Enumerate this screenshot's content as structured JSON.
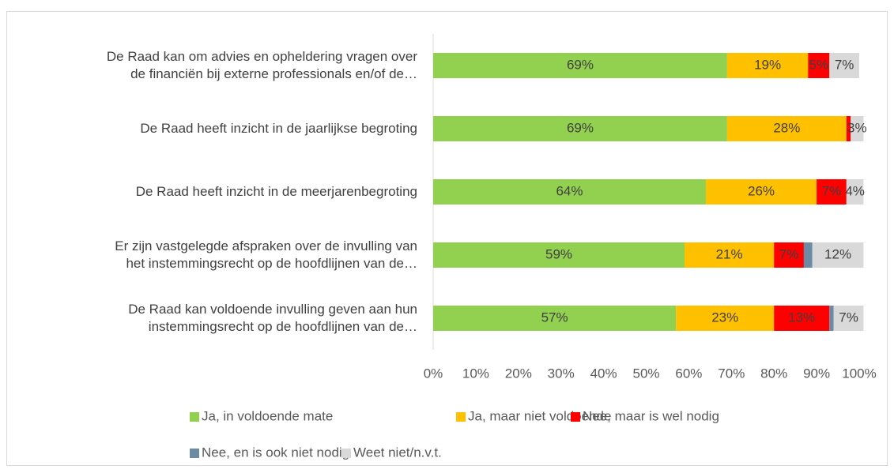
{
  "chart_data": {
    "type": "stacked-barh",
    "categories": [
      "De Raad kan om advies en opheldering vragen over\nde financiën bij externe professionals en/of de…",
      "De Raad heeft inzicht in de jaarlijkse begroting",
      "De Raad heeft inzicht in de meerjarenbegroting",
      "Er zijn vastgelegde afspraken over de invulling van\nhet instemmingsrecht op de hoofdlijnen van de…",
      "De Raad kan voldoende invulling geven aan hun\ninstemmingsrecht op de hoofdlijnen van de…"
    ],
    "series": [
      {
        "name": "Ja, in voldoende mate",
        "color": "#92d050",
        "values": [
          69,
          69,
          64,
          59,
          57
        ],
        "value_labels": [
          "69%",
          "69%",
          "64%",
          "59%",
          "57%"
        ]
      },
      {
        "name": "Ja, maar niet voldoende",
        "color": "#ffc000",
        "values": [
          19,
          28,
          26,
          21,
          23
        ],
        "value_labels": [
          "19%",
          "28%",
          "26%",
          "21%",
          "23%"
        ]
      },
      {
        "name": "Nee, maar is wel nodig",
        "color": "#ff0000",
        "values": [
          5,
          1,
          7,
          7,
          13
        ],
        "value_labels": [
          "5%",
          null,
          "7%",
          "7%",
          "13%"
        ]
      },
      {
        "name": "Nee, en is ook niet nodig",
        "color": "#6b8aa3",
        "values": [
          0,
          0,
          0,
          2,
          1
        ],
        "value_labels": [
          null,
          null,
          null,
          null,
          null
        ]
      },
      {
        "name": "Weet niet/n.v.t.",
        "color": "#d9d9d9",
        "values": [
          7,
          3,
          4,
          12,
          7
        ],
        "value_labels": [
          "7%",
          "3%",
          "4%",
          "12%",
          "7%"
        ]
      }
    ],
    "xlim": [
      0,
      100
    ],
    "xticks": [
      {
        "value": 0,
        "label": "0%"
      },
      {
        "value": 10,
        "label": "10%"
      },
      {
        "value": 20,
        "label": "20%"
      },
      {
        "value": 30,
        "label": "30%"
      },
      {
        "value": 40,
        "label": "40%"
      },
      {
        "value": 50,
        "label": "50%"
      },
      {
        "value": 60,
        "label": "60%"
      },
      {
        "value": 70,
        "label": "70%"
      },
      {
        "value": 80,
        "label": "80%"
      },
      {
        "value": 90,
        "label": "90%"
      },
      {
        "value": 100,
        "label": "100%"
      }
    ],
    "grid": false,
    "legend": "bottom"
  }
}
